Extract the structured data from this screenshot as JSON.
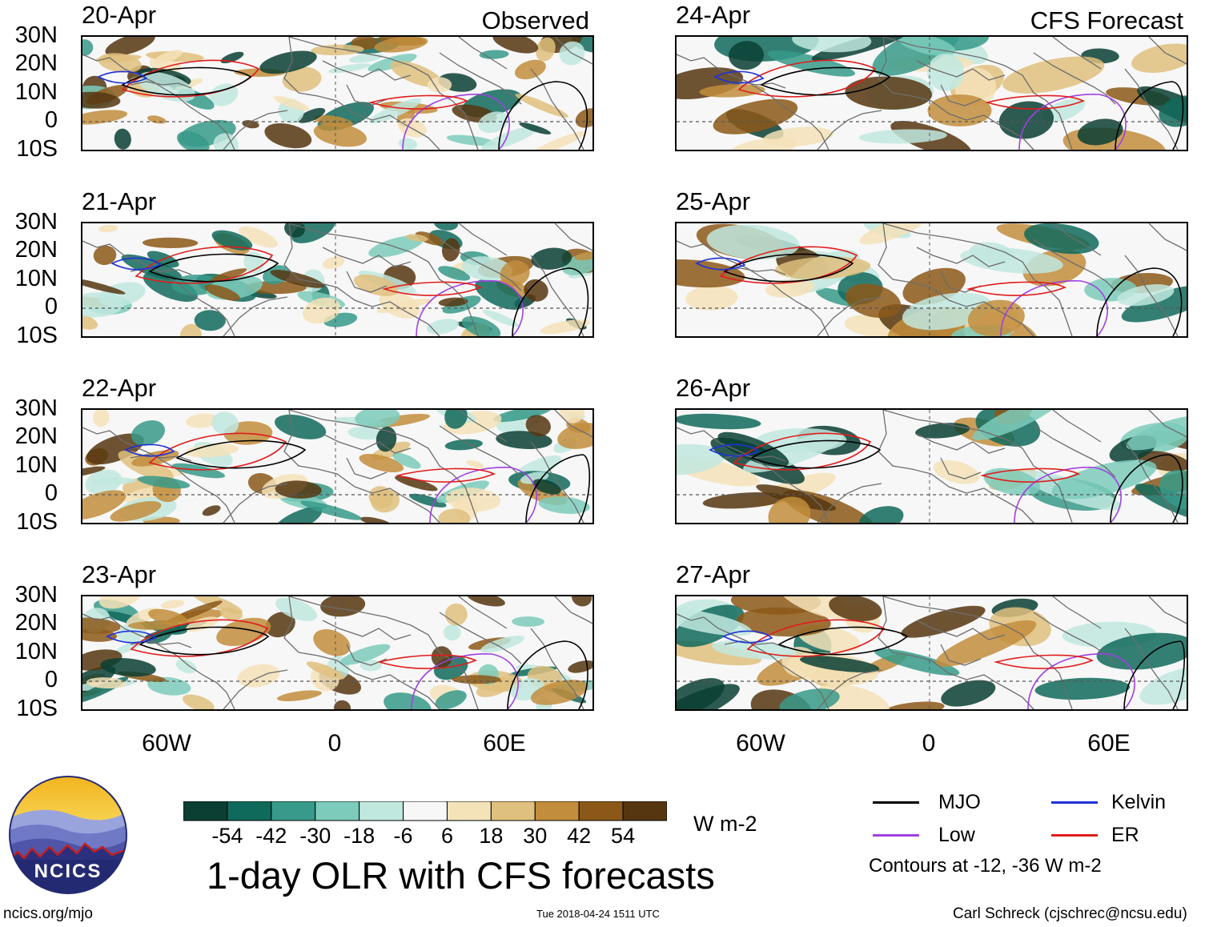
{
  "title": "1-day OLR with CFS forecasts",
  "units": "W m-2",
  "observed_label": "Observed",
  "forecast_label": "CFS Forecast",
  "lat_labels": [
    "30N",
    "20N",
    "10N",
    "0",
    "10S"
  ],
  "lon_labels": [
    "60W",
    "0",
    "60E"
  ],
  "panels_left": [
    {
      "date": "20-Apr"
    },
    {
      "date": "21-Apr"
    },
    {
      "date": "22-Apr"
    },
    {
      "date": "23-Apr"
    }
  ],
  "panels_right": [
    {
      "date": "24-Apr"
    },
    {
      "date": "25-Apr"
    },
    {
      "date": "26-Apr"
    },
    {
      "date": "27-Apr"
    }
  ],
  "colorbar": {
    "labels": [
      "-54",
      "-42",
      "-30",
      "-18",
      "-6",
      "6",
      "18",
      "30",
      "42",
      "54"
    ],
    "colors": [
      "#0b3f34",
      "#106a5c",
      "#379a8a",
      "#7ccbbb",
      "#c1e8df",
      "#f7f7f7",
      "#f4e2b9",
      "#dfc07e",
      "#c28d3c",
      "#8c5817",
      "#563610"
    ]
  },
  "legend": {
    "items": [
      {
        "label": "MJO",
        "color": "#000000"
      },
      {
        "label": "Kelvin",
        "color": "#1e32d8"
      },
      {
        "label": "Low",
        "color": "#a040e0"
      },
      {
        "label": "ER",
        "color": "#e01c1c"
      }
    ],
    "note": "Contours at -12, -36 W m-2"
  },
  "logo_text": "NCICS",
  "footer": {
    "url": "ncics.org/mjo",
    "timestamp": "Tue 2018-04-24 1511 UTC",
    "credit": "Carl Schreck (cjschrec@ncsu.edu)"
  }
}
